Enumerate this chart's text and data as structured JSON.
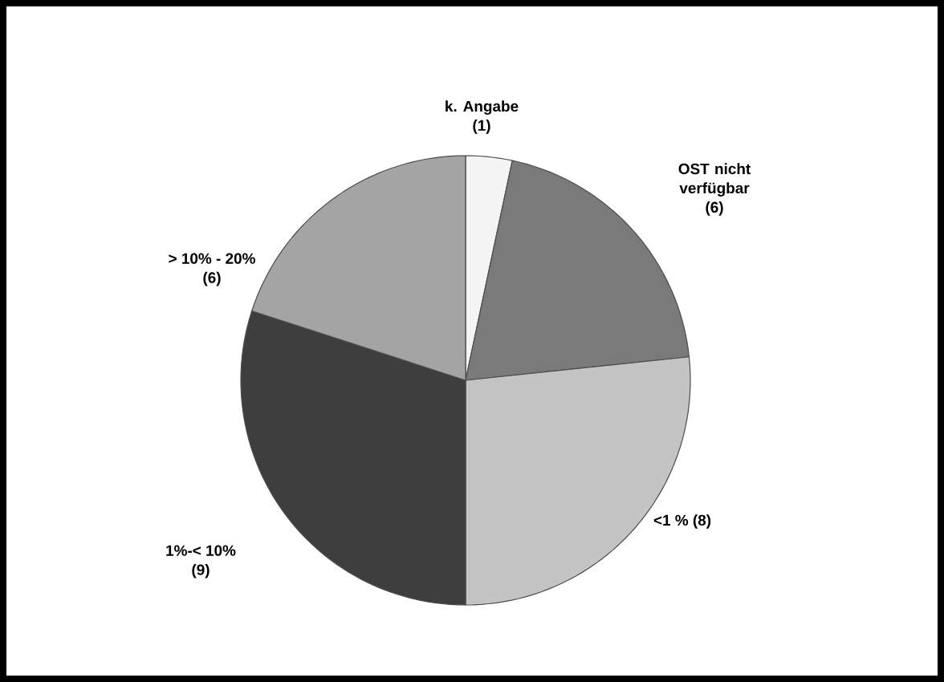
{
  "chart_data": {
    "type": "pie",
    "categories": [
      "k. Angabe",
      "OST nicht verfügbar",
      "<1 %",
      "1%-< 10%",
      "> 10% - 20%"
    ],
    "values": [
      1,
      6,
      8,
      9,
      6
    ],
    "value_labels": [
      "(1)",
      "(6)",
      "(8)",
      "(9)",
      "(6)"
    ],
    "colors": [
      "#f4f4f4",
      "#7a7a7a",
      "#c4c4c4",
      "#3e3e3e",
      "#a4a4a4"
    ]
  }
}
